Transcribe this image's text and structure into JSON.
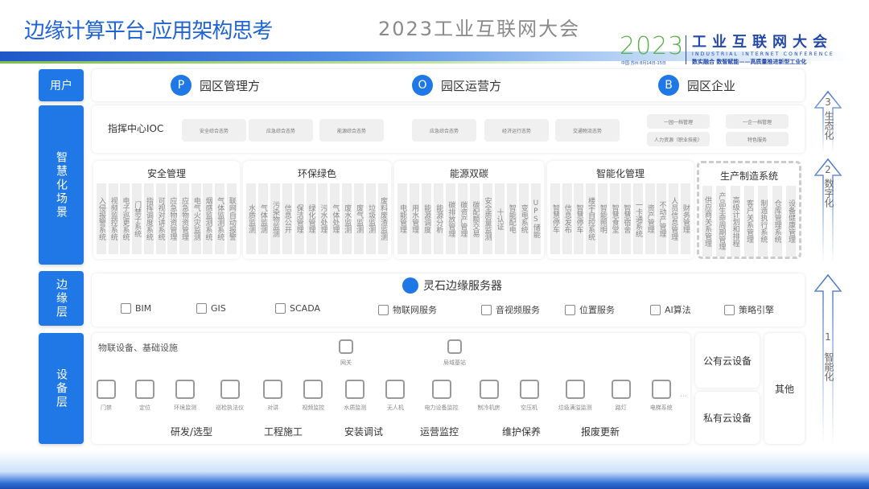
{
  "title": "边缘计算平台-应用架构思考",
  "logo": {
    "year": "2023",
    "small": "中国·苏州 8月14日-15日",
    "name": "工业互联网大会",
    "english": "INDUSTRIAL INTERNET CONFERENCE",
    "slogan": "数实融合 数智赋能——高质量推进新型工业化"
  },
  "sidebar": [
    "用户",
    "智慧化场景",
    "边缘层",
    "设备层"
  ],
  "users": [
    {
      "badge": "P",
      "label": "园区管理方"
    },
    {
      "badge": "O",
      "label": "园区运营方"
    },
    {
      "badge": "B",
      "label": "园区企业"
    }
  ],
  "ioc": {
    "label": "指挥中心IOC",
    "pills": [
      "安全综合态势",
      "应急综合态势",
      "能源综合态势",
      "应急综合态势",
      "经济运行态势",
      "交通物流态势"
    ],
    "right_pills": [
      "一园一档管理",
      "一企一档管理",
      "人力资源（职业技能）",
      "特色服务"
    ]
  },
  "categories": [
    {
      "title": "安全管理",
      "items": [
        "入侵报警系统",
        "视频监控系统",
        "电子巡更系统",
        "门禁子系统",
        "指挥调度系统",
        "可视对讲系统",
        "应急物资管理",
        "应急物资管理",
        "电气火灾监测",
        "烟感监测系统",
        "气体监测系统",
        "联网自动报警"
      ]
    },
    {
      "title": "环保绿色",
      "items": [
        "水质监测",
        "气体监测",
        "污染物监测",
        "信息公开",
        "保洁管理",
        "绿化管理",
        "污水处理",
        "气体处理",
        "废水监测",
        "废气监测",
        "垃圾监测",
        "废料废渣监测"
      ]
    },
    {
      "title": "能源双碳",
      "items": [
        "电能管理",
        "用水管理",
        "能源调度",
        "能源分析",
        "碳排放管理",
        "碳资产管理",
        "碳配额交易",
        "安全质量监测",
        "十认证",
        "智能配电",
        "变电系统",
        "UPS储能"
      ]
    },
    {
      "title": "智能化管理",
      "items": [
        "智慧停车",
        "信息发布",
        "智慧停车",
        "楼宇自控系统",
        "智能照明",
        "智慧食堂",
        "智慧宿舍",
        "一卡通系统",
        "资产管理",
        "不动产管理",
        "人员信息管理",
        "财务管理"
      ]
    },
    {
      "title": "生产制造系统",
      "items": [
        "供应商关系管理",
        "产品生命周期管理",
        "高级计划和排程",
        "客户关系管理",
        "制造执行系统",
        "仓库管理系统",
        "设备健康管理"
      ]
    }
  ],
  "edge": {
    "server": "灵石边缘服务器",
    "services": [
      {
        "icon": "cube-icon",
        "label": "BIM"
      },
      {
        "icon": "location-icon",
        "label": "GIS"
      },
      {
        "icon": "scada-icon",
        "label": "SCADA",
        "badge": "SCADA"
      },
      {
        "icon": "iot-icon",
        "label": "物联网服务"
      },
      {
        "icon": "video-icon",
        "label": "音视频服务"
      },
      {
        "icon": "position-icon",
        "label": "位置服务"
      },
      {
        "icon": "chip-icon",
        "label": "AI算法"
      },
      {
        "icon": "policy-icon",
        "label": "策略引擎"
      }
    ]
  },
  "devices": {
    "label": "物联设备、基础设施",
    "top": [
      {
        "icon": "gateway-icon",
        "label": "网关"
      },
      {
        "icon": "antenna-icon",
        "label": "局域基站"
      }
    ],
    "items": [
      {
        "icon": "door-icon",
        "label": "门禁"
      },
      {
        "icon": "location-icon",
        "label": "定位"
      },
      {
        "icon": "leaf-icon",
        "label": "环境监测"
      },
      {
        "icon": "document-icon",
        "label": "巡检执法仪"
      },
      {
        "icon": "walkie-icon",
        "label": "对讲"
      },
      {
        "icon": "camera-icon",
        "label": "视频监控"
      },
      {
        "icon": "water-icon",
        "label": "水质监测"
      },
      {
        "icon": "drone-icon",
        "label": "无人机"
      },
      {
        "icon": "power-icon",
        "label": "电力设备监控"
      },
      {
        "icon": "chiller-icon",
        "label": "制冷机房"
      },
      {
        "icon": "compressor-icon",
        "label": "空压机"
      },
      {
        "icon": "trash-icon",
        "label": "垃圾满溢监测"
      },
      {
        "icon": "streetlight-icon",
        "label": "路灯"
      },
      {
        "icon": "elevator-icon",
        "label": "电梯系统"
      }
    ],
    "more": "...",
    "phases": [
      "研发/选型",
      "工程施工",
      "安装调试",
      "运营监控",
      "维护保养",
      "报废更新"
    ]
  },
  "cloud": {
    "public": "公有云设备",
    "private": "私有云设备",
    "other": "其他"
  },
  "stages": [
    {
      "num": "3",
      "label": "生态化"
    },
    {
      "num": "2",
      "label": "数字化"
    },
    {
      "num": "1",
      "label": "智能化"
    }
  ],
  "watermark": "2023工业互联网大会",
  "colors": {
    "primary": "#1f78e6",
    "title": "#1f63d6",
    "logo_green": "#5bb14a"
  }
}
